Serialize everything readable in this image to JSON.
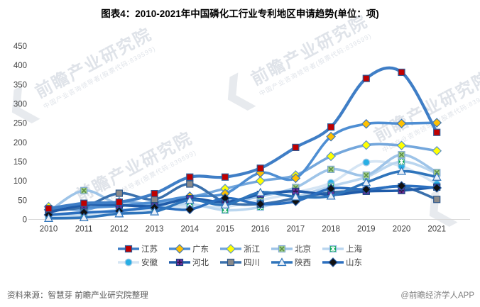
{
  "title": "图表4：2010-2021年中国磷化工行业专利地区申请趋势(单位：项)",
  "watermark": {
    "brand": "前瞻产业研究院",
    "slogan": "中国产业咨询领导者(股票代码:839599)",
    "glyph": "❮"
  },
  "footer": {
    "source": "资料来源：智慧芽 前瞻产业研究院整理",
    "credit": "@前瞻经济学人APP"
  },
  "chart_data": {
    "type": "line",
    "title": "图表4：2010-2021年中国磷化工行业专利地区申请趋势(单位：项)",
    "x": [
      2010,
      2011,
      2012,
      2013,
      2014,
      2015,
      2016,
      2017,
      2018,
      2019,
      2020,
      2021
    ],
    "ylim": [
      0,
      450
    ],
    "ytick_step": 50,
    "grid": false,
    "legend_position": "bottom",
    "legend_rows": 5,
    "z_order": [
      5,
      4,
      3,
      2,
      1,
      7,
      6,
      9,
      8,
      0
    ],
    "series": [
      {
        "name": "江苏",
        "values": [
          28,
          42,
          45,
          67,
          110,
          110,
          133,
          187,
          240,
          366,
          382,
          226
        ],
        "line_color": "#3F7EC6",
        "line_width": 4.2,
        "marker": {
          "shape": "square",
          "fill": "#C00000",
          "edge": "#2E5B97"
        }
      },
      {
        "name": "广东",
        "values": [
          25,
          30,
          35,
          45,
          60,
          67,
          121,
          107,
          215,
          248,
          249,
          251
        ],
        "line_color": "#4E8ED3",
        "line_width": 3.6,
        "marker": {
          "shape": "diamond",
          "fill": "#FFC000",
          "edge": "#3E76B4"
        }
      },
      {
        "name": "浙江",
        "values": [
          33,
          25,
          46,
          40,
          57,
          80,
          100,
          115,
          164,
          193,
          192,
          178
        ],
        "line_color": "#74A7DC",
        "line_width": 3.6,
        "marker": {
          "shape": "diamond",
          "fill": "#FFFF00",
          "edge": "#5E93C8"
        }
      },
      {
        "name": "北京",
        "values": [
          20,
          75,
          40,
          43,
          50,
          45,
          60,
          83,
          130,
          115,
          168,
          122
        ],
        "line_color": "#9EC4E8",
        "line_width": 3.6,
        "marker": {
          "shape": "square-x",
          "fill": "#A6D48C",
          "edge": "#7FA8D0",
          "pattern": "#5E8F46"
        }
      },
      {
        "name": "上海",
        "values": [
          10,
          15,
          25,
          30,
          40,
          24,
          32,
          58,
          86,
          110,
          150,
          120
        ],
        "line_color": "#BAD6EF",
        "line_width": 3.6,
        "marker": {
          "shape": "square-star",
          "fill": "#00A550",
          "edge": "#8FB9E0",
          "pattern": "#FFFFFF"
        }
      },
      {
        "name": "安徽",
        "values": [
          6,
          10,
          15,
          25,
          34,
          33,
          50,
          70,
          95,
          148,
          138,
          92
        ],
        "line_color": "#D5E5F4",
        "line_width": 3.6,
        "marker": {
          "shape": "circle",
          "fill": "#27AEE4",
          "edge": "#A9CCE8"
        }
      },
      {
        "name": "河北",
        "values": [
          18,
          37,
          37,
          35,
          54,
          45,
          65,
          73,
          64,
          73,
          75,
          84
        ],
        "line_color": "#1F5BA9",
        "line_width": 3.6,
        "marker": {
          "shape": "square-plus",
          "fill": "#7030A0",
          "edge": "#17457F",
          "pattern": "#31184B"
        }
      },
      {
        "name": "四川",
        "values": [
          22,
          33,
          68,
          52,
          92,
          45,
          40,
          55,
          70,
          75,
          85,
          52
        ],
        "line_color": "#3A70AC",
        "line_width": 3.6,
        "marker": {
          "shape": "square",
          "fill": "#8A8A8A",
          "edge": "#2C568A"
        }
      },
      {
        "name": "陕西",
        "values": [
          3,
          5,
          15,
          20,
          50,
          38,
          70,
          59,
          61,
          96,
          125,
          110
        ],
        "line_color": "#2E74BB",
        "line_width": 3.6,
        "marker": {
          "shape": "triangle",
          "fill": "#E9EFF7",
          "edge": "#2E74BB"
        }
      },
      {
        "name": "山东",
        "values": [
          12,
          18,
          22,
          31,
          26,
          55,
          40,
          47,
          80,
          78,
          87,
          82
        ],
        "line_color": "#2B6FBF",
        "line_width": 3.6,
        "marker": {
          "shape": "diamond",
          "fill": "#111111",
          "edge": "#2458A0"
        }
      }
    ]
  }
}
